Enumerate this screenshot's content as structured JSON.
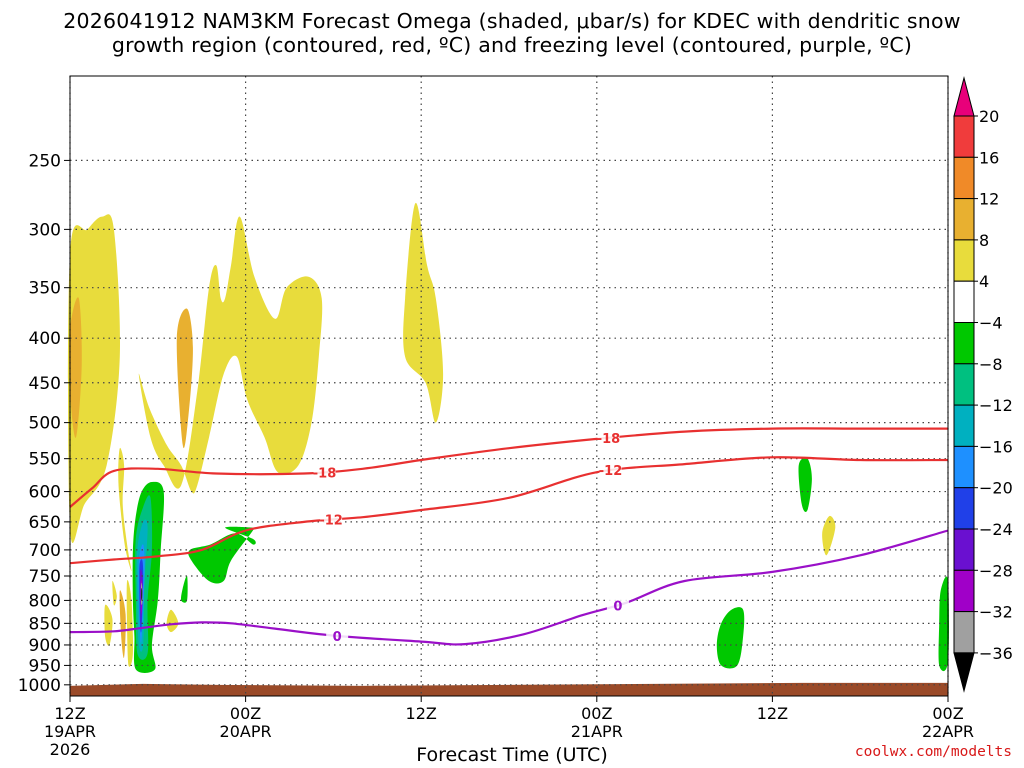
{
  "title_line1": "2026041912 NAM3KM Forecast Omega (shaded, μbar/s) for KDEC with dendritic snow",
  "title_line2": "growth region (contoured, red, ºC) and freezing level (contoured, purple, ºC)",
  "credit": "coolwx.com/modelts",
  "chart_data": {
    "type": "time-height contour",
    "xlabel": "Forecast Time (UTC)",
    "x_ticks": [
      {
        "hours": 0,
        "label": "12Z",
        "sub": "19APR",
        "sub2": "2026"
      },
      {
        "hours": 12,
        "label": "00Z",
        "sub": "20APR",
        "sub2": ""
      },
      {
        "hours": 24,
        "label": "12Z",
        "sub": "",
        "sub2": ""
      },
      {
        "hours": 36,
        "label": "00Z",
        "sub": "21APR",
        "sub2": ""
      },
      {
        "hours": 48,
        "label": "12Z",
        "sub": "",
        "sub2": ""
      },
      {
        "hours": 60,
        "label": "00Z",
        "sub": "22APR",
        "sub2": ""
      }
    ],
    "xlim_hours": [
      0,
      60
    ],
    "y_pressure_ticks": [
      250,
      300,
      350,
      400,
      450,
      500,
      550,
      600,
      650,
      700,
      750,
      800,
      850,
      900,
      950,
      1000
    ],
    "ylim_mb": [
      200,
      1030
    ],
    "y_scale": "log-pressure",
    "grid": "dotted",
    "colorbar": {
      "labels": [
        "20",
        "16",
        "12",
        "8",
        "4",
        "−4",
        "−8",
        "−12",
        "−16",
        "−20",
        "−24",
        "−28",
        "−32",
        "−36"
      ],
      "colors": [
        "#e8007a",
        "#f03c3c",
        "#f08a28",
        "#e8b030",
        "#e8dc3c",
        "#ffffff",
        "#00c800",
        "#00c080",
        "#00b0c0",
        "#1e90ff",
        "#2040e8",
        "#6a10d0",
        "#a000c8",
        "#a0a0a0",
        "#000000"
      ]
    },
    "contours": [
      {
        "label": "-18",
        "color": "#e83030",
        "points": [
          [
            0,
            625
          ],
          [
            1.5,
            595
          ],
          [
            3,
            568
          ],
          [
            6,
            565
          ],
          [
            10,
            572
          ],
          [
            16,
            572
          ],
          [
            20,
            565
          ],
          [
            24,
            552
          ],
          [
            30,
            535
          ],
          [
            36,
            522
          ],
          [
            42,
            512
          ],
          [
            48,
            508
          ],
          [
            54,
            508
          ],
          [
            60,
            508
          ]
        ]
      },
      {
        "label": "-12",
        "color": "#e83030",
        "points": [
          [
            0,
            725
          ],
          [
            3,
            718
          ],
          [
            6,
            712
          ],
          [
            9,
            700
          ],
          [
            12,
            665
          ],
          [
            16,
            650
          ],
          [
            20,
            642
          ],
          [
            24,
            630
          ],
          [
            30,
            610
          ],
          [
            36,
            570
          ],
          [
            42,
            558
          ],
          [
            48,
            548
          ],
          [
            54,
            552
          ],
          [
            60,
            552
          ]
        ]
      },
      {
        "label": "0",
        "color": "#9a10c8",
        "points": [
          [
            0,
            870
          ],
          [
            3,
            868
          ],
          [
            5,
            860
          ],
          [
            7,
            852
          ],
          [
            9,
            848
          ],
          [
            11,
            850
          ],
          [
            14,
            862
          ],
          [
            18,
            878
          ],
          [
            24,
            892
          ],
          [
            27,
            898
          ],
          [
            31,
            875
          ],
          [
            35,
            832
          ],
          [
            38,
            805
          ],
          [
            42,
            760
          ],
          [
            48,
            742
          ],
          [
            54,
            710
          ],
          [
            60,
            665
          ]
        ]
      }
    ],
    "omega_regions": [
      {
        "value_class": "4 to 8",
        "color": "#e8dc3c",
        "points": [
          [
            0,
            320
          ],
          [
            0,
            660
          ],
          [
            1,
            620
          ],
          [
            2.5,
            560
          ],
          [
            3.4,
            420
          ],
          [
            3,
            300
          ],
          [
            2.2,
            290
          ],
          [
            1.2,
            300
          ]
        ]
      },
      {
        "value_class": "8 to 12",
        "color": "#e8b030",
        "points": [
          [
            0,
            390
          ],
          [
            0,
            460
          ],
          [
            0.4,
            520
          ],
          [
            0.8,
            430
          ],
          [
            0.6,
            360
          ]
        ]
      },
      {
        "value_class": "4 to 8",
        "color": "#e8dc3c",
        "points": [
          [
            4.7,
            440
          ],
          [
            5.5,
            520
          ],
          [
            6.4,
            560
          ],
          [
            7.6,
            590
          ],
          [
            8.7,
            460
          ],
          [
            9.5,
            350
          ],
          [
            10.0,
            330
          ],
          [
            10.3,
            360
          ],
          [
            10.6,
            360
          ],
          [
            11.0,
            330
          ],
          [
            11.6,
            290
          ],
          [
            12.6,
            340
          ],
          [
            14,
            380
          ],
          [
            14.8,
            350
          ],
          [
            16.3,
            340
          ],
          [
            17.2,
            360
          ],
          [
            17.0,
            420
          ],
          [
            16.5,
            500
          ],
          [
            15.6,
            560
          ],
          [
            14.2,
            570
          ],
          [
            13.3,
            520
          ],
          [
            12.1,
            470
          ],
          [
            11.4,
            420
          ],
          [
            10.5,
            440
          ],
          [
            9.5,
            520
          ],
          [
            8.7,
            590
          ],
          [
            8.3,
            600
          ],
          [
            7.6,
            560
          ],
          [
            6.6,
            530
          ],
          [
            5.4,
            480
          ]
        ]
      },
      {
        "value_class": "8 to 12",
        "color": "#e8b030",
        "points": [
          [
            7.3,
            400
          ],
          [
            7.7,
            530
          ],
          [
            8.1,
            490
          ],
          [
            8.4,
            410
          ],
          [
            8.0,
            370
          ]
        ]
      },
      {
        "value_class": "4 to 8",
        "color": "#e8dc3c",
        "points": [
          [
            22.9,
            360
          ],
          [
            23.6,
            280
          ],
          [
            24.4,
            330
          ],
          [
            25.0,
            360
          ],
          [
            25.5,
            440
          ],
          [
            25.0,
            500
          ],
          [
            24.3,
            450
          ],
          [
            22.9,
            420
          ]
        ]
      },
      {
        "value_class": "4 to 8",
        "color": "#e8dc3c",
        "points": [
          [
            3.4,
            535
          ],
          [
            3.7,
            560
          ],
          [
            3.6,
            620
          ],
          [
            3.9,
            690
          ],
          [
            4.2,
            740
          ],
          [
            3.8,
            700
          ],
          [
            3.5,
            640
          ],
          [
            3.3,
            580
          ]
        ]
      },
      {
        "value_class": "4 to 8",
        "color": "#e8dc3c",
        "points": [
          [
            2.4,
            810
          ],
          [
            2.9,
            840
          ],
          [
            2.7,
            900
          ],
          [
            2.4,
            880
          ]
        ]
      },
      {
        "value_class": "4 to 8",
        "color": "#e8dc3c",
        "points": [
          [
            2.9,
            760
          ],
          [
            3.2,
            790
          ],
          [
            3.0,
            810
          ]
        ]
      },
      {
        "value_class": "8 to 12",
        "color": "#e8b030",
        "points": [
          [
            3.4,
            780
          ],
          [
            3.8,
            830
          ],
          [
            3.7,
            930
          ],
          [
            3.5,
            880
          ]
        ]
      },
      {
        "value_class": "4 to 8",
        "color": "#e8dc3c",
        "points": [
          [
            3.9,
            760
          ],
          [
            4.2,
            800
          ],
          [
            4.3,
            920
          ],
          [
            4.0,
            950
          ],
          [
            3.9,
            860
          ]
        ]
      },
      {
        "value_class": "4 to 8",
        "color": "#e8dc3c",
        "points": [
          [
            6.9,
            820
          ],
          [
            7.4,
            850
          ],
          [
            6.9,
            870
          ],
          [
            6.6,
            850
          ]
        ]
      },
      {
        "value_class": "4 to 8",
        "color": "#e8dc3c",
        "points": [
          [
            51.9,
            640
          ],
          [
            52.3,
            660
          ],
          [
            51.7,
            710
          ],
          [
            51.4,
            670
          ]
        ]
      },
      {
        "value_class": "-4 to -8",
        "color": "#00c800",
        "points": [
          [
            4.5,
            640
          ],
          [
            4.9,
            600
          ],
          [
            5.6,
            585
          ],
          [
            6.4,
            600
          ],
          [
            6.2,
            700
          ],
          [
            6.0,
            800
          ],
          [
            5.6,
            900
          ],
          [
            5.8,
            960
          ],
          [
            4.5,
            960
          ],
          [
            4.4,
            880
          ],
          [
            4.3,
            800
          ],
          [
            4.3,
            700
          ]
        ]
      },
      {
        "value_class": "-8 to -12",
        "color": "#00c080",
        "points": [
          [
            4.5,
            680
          ],
          [
            5.0,
            625
          ],
          [
            5.5,
            610
          ],
          [
            5.6,
            700
          ],
          [
            5.3,
            800
          ],
          [
            5.3,
            920
          ],
          [
            4.6,
            920
          ],
          [
            4.5,
            800
          ]
        ]
      },
      {
        "value_class": "-12 to -16",
        "color": "#00b0c0",
        "points": [
          [
            4.6,
            700
          ],
          [
            5.0,
            650
          ],
          [
            5.3,
            660
          ],
          [
            5.1,
            760
          ],
          [
            5.0,
            900
          ],
          [
            4.7,
            900
          ],
          [
            4.6,
            800
          ]
        ]
      },
      {
        "value_class": "-16 to -20",
        "color": "#1e90ff",
        "points": [
          [
            4.7,
            720
          ],
          [
            5.0,
            690
          ],
          [
            5.1,
            740
          ],
          [
            4.9,
            880
          ],
          [
            4.8,
            880
          ],
          [
            4.7,
            800
          ]
        ]
      },
      {
        "value_class": "-20 to -24",
        "color": "#2040e8",
        "points": [
          [
            4.75,
            730
          ],
          [
            4.95,
            720
          ],
          [
            5.0,
            760
          ],
          [
            4.9,
            860
          ],
          [
            4.8,
            860
          ],
          [
            4.75,
            800
          ]
        ]
      },
      {
        "value_class": "-24 to -28",
        "color": "#6a10d0",
        "points": [
          [
            4.8,
            740
          ],
          [
            4.95,
            750
          ],
          [
            4.95,
            790
          ],
          [
            4.85,
            850
          ],
          [
            4.8,
            800
          ]
        ]
      },
      {
        "value_class": "-28 to -32",
        "color": "#a000c8",
        "points": [
          [
            4.85,
            760
          ],
          [
            4.95,
            770
          ],
          [
            4.95,
            800
          ],
          [
            4.88,
            830
          ],
          [
            4.83,
            800
          ]
        ]
      },
      {
        "value_class": "-32 to -36",
        "color": "#a0a0a0",
        "points": [
          [
            4.86,
            765
          ],
          [
            4.94,
            775
          ],
          [
            4.94,
            805
          ],
          [
            4.86,
            805
          ]
        ]
      },
      {
        "value_class": "< -36",
        "color": "#000000",
        "points": [
          [
            4.88,
            775
          ],
          [
            4.93,
            780
          ],
          [
            4.92,
            800
          ],
          [
            4.87,
            795
          ]
        ]
      },
      {
        "value_class": "-4 to -8",
        "color": "#00c800",
        "points": [
          [
            7.7,
            775
          ],
          [
            8.0,
            750
          ],
          [
            8.0,
            800
          ],
          [
            7.6,
            800
          ]
        ]
      },
      {
        "value_class": "-4 to -8",
        "color": "#00c800",
        "points": [
          [
            8.2,
            700
          ],
          [
            9.6,
            690
          ],
          [
            11.3,
            670
          ],
          [
            12.5,
            690
          ],
          [
            12.5,
            680
          ],
          [
            10.6,
            660
          ],
          [
            12.5,
            660
          ],
          [
            12.5,
            665
          ],
          [
            11.0,
            720
          ],
          [
            10.5,
            760
          ],
          [
            9.5,
            760
          ],
          [
            8.3,
            720
          ]
        ]
      },
      {
        "value_class": "-4 to -8",
        "color": "#00c800",
        "points": [
          [
            44.5,
            850
          ],
          [
            45.2,
            820
          ],
          [
            46.0,
            820
          ],
          [
            46.0,
            880
          ],
          [
            45.6,
            950
          ],
          [
            44.5,
            950
          ],
          [
            44.2,
            900
          ]
        ]
      },
      {
        "value_class": "-4 to -8",
        "color": "#00c800",
        "points": [
          [
            49.8,
            560
          ],
          [
            50.4,
            550
          ],
          [
            50.7,
            580
          ],
          [
            50.4,
            630
          ],
          [
            50.0,
            620
          ]
        ]
      },
      {
        "value_class": "-4 to -8",
        "color": "#00c800",
        "points": [
          [
            59.5,
            780
          ],
          [
            60,
            760
          ],
          [
            60,
            940
          ],
          [
            59.4,
            950
          ],
          [
            59.4,
            850
          ]
        ]
      }
    ],
    "surface_color": "#9a4a28"
  }
}
